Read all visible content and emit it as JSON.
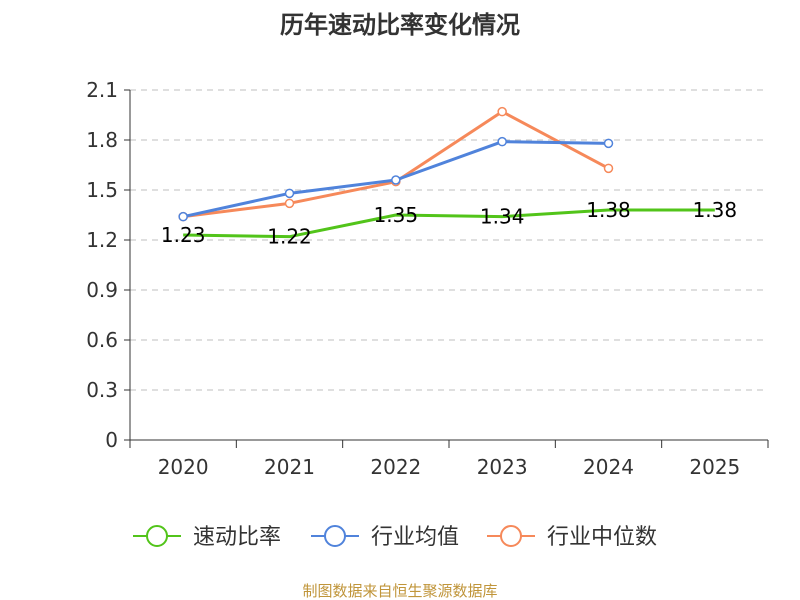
{
  "chart_data": {
    "type": "line",
    "title": "历年速动比率变化情况",
    "categories": [
      "2020",
      "2021",
      "2022",
      "2023",
      "2024",
      "2025"
    ],
    "ylim": [
      0,
      2.1
    ],
    "yticks": [
      "0",
      "0.3",
      "0.6",
      "0.9",
      "1.2",
      "1.5",
      "1.8",
      "2.1"
    ],
    "ytick_values": [
      0,
      0.3,
      0.6,
      0.9,
      1.2,
      1.5,
      1.8,
      2.1
    ],
    "grid": true,
    "legend_position": "bottom",
    "series": [
      {
        "name": "速动比率",
        "color": "#52c41a",
        "values": [
          1.23,
          1.22,
          1.35,
          1.34,
          1.38,
          1.38
        ],
        "labels": [
          "1.23",
          "1.22",
          "1.35",
          "1.34",
          "1.38",
          "1.38"
        ],
        "show_labels": true,
        "markers": false
      },
      {
        "name": "行业均值",
        "color": "#5083db",
        "values": [
          1.34,
          1.48,
          1.56,
          1.79,
          1.78,
          null
        ],
        "show_labels": false,
        "markers": true
      },
      {
        "name": "行业中位数",
        "color": "#f6895a",
        "values": [
          1.34,
          1.42,
          1.55,
          1.97,
          1.63,
          null
        ],
        "show_labels": false,
        "markers": true
      }
    ],
    "source": "制图数据来自恒生聚源数据库",
    "source_color": "#c0953a"
  }
}
